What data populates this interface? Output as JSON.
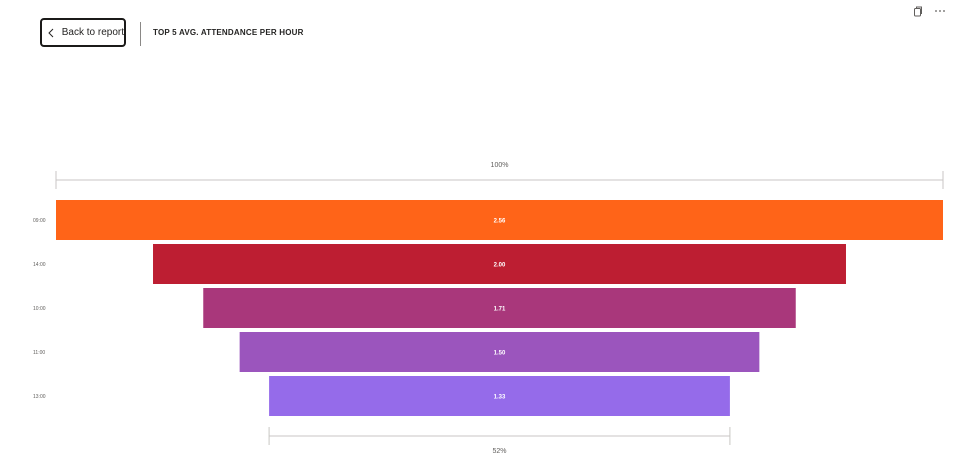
{
  "header": {
    "back_label": "Back to report",
    "title": "TOP 5 AVG. ATTENDANCE PER HOUR"
  },
  "icons": {
    "back": "chevron-left-icon",
    "copy": "copy-icon",
    "more": "more-options-icon"
  },
  "chart_data": {
    "type": "funnel",
    "title": "TOP 5 AVG. ATTENDANCE PER HOUR",
    "categories": [
      "09:00",
      "14:00",
      "10:00",
      "11:00",
      "13:00"
    ],
    "values": [
      2.56,
      2.0,
      1.71,
      1.5,
      1.33
    ],
    "value_labels": [
      "2.56",
      "2.00",
      "1.71",
      "1.50",
      "1.33"
    ],
    "colors": [
      "#ff6418",
      "#bd1e32",
      "#a9377b",
      "#9b55bd",
      "#956bea"
    ],
    "top_percent_label": "100%",
    "bottom_percent_label": "52%"
  }
}
